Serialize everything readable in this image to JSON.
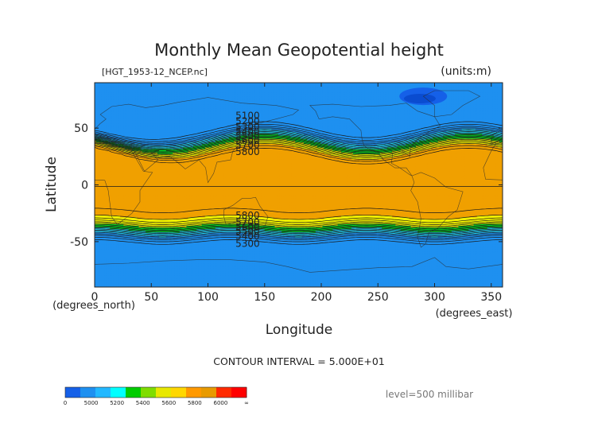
{
  "chart_data": {
    "type": "heatmap",
    "title": "Monthly Mean Geopotential height",
    "file_label": "[HGT_1953-12_NCEP.nc]",
    "units_label": "(units:m)",
    "xlabel": "Longitude",
    "ylabel": "Latitude",
    "x_unit_label": "(degrees_east)",
    "y_unit_label": "(degrees_north)",
    "xlim": [
      0,
      360
    ],
    "ylim": [
      -90,
      90
    ],
    "x_ticks": [
      0,
      50,
      100,
      150,
      200,
      250,
      300,
      350
    ],
    "y_ticks": [
      50,
      0,
      -50
    ],
    "contour_interval_text": "CONTOUR INTERVAL = 5.000E+01",
    "level_text": "level=500 millibar",
    "contour_interval": 50,
    "colorbar": {
      "ticks": [
        "0",
        "5000",
        "5200",
        "5400",
        "5600",
        "5800",
        "6000",
        "∞"
      ],
      "colors": [
        "#1560e8",
        "#1e90f0",
        "#22b8ff",
        "#00ffff",
        "#00cc00",
        "#7fdd00",
        "#e8e800",
        "#ffd700",
        "#ff9900",
        "#e89a00",
        "#ff2a00",
        "#ff0000"
      ]
    },
    "bands": [
      {
        "range": [
          4950,
          5150
        ],
        "color": "#1e90f0"
      },
      {
        "range": [
          5150,
          5350
        ],
        "color": "#22d7ff"
      },
      {
        "range": [
          5350,
          5550
        ],
        "color": "#00dd22"
      },
      {
        "range": [
          5550,
          5750
        ],
        "color": "#f0f000"
      },
      {
        "range": [
          5750,
          5900
        ],
        "color": "#f0a000"
      }
    ],
    "contour_labels": [
      {
        "text": "5100",
        "lon": 135,
        "lat": 61
      },
      {
        "text": "5200",
        "lon": 135,
        "lat": 56
      },
      {
        "text": "5300",
        "lon": 135,
        "lat": 51
      },
      {
        "text": "5400",
        "lon": 135,
        "lat": 47
      },
      {
        "text": "5500",
        "lon": 135,
        "lat": 43
      },
      {
        "text": "5600",
        "lon": 135,
        "lat": 39
      },
      {
        "text": "5700",
        "lon": 135,
        "lat": 35
      },
      {
        "text": "5800",
        "lon": 135,
        "lat": 29
      },
      {
        "text": "5800",
        "lon": 135,
        "lat": -27
      },
      {
        "text": "5700",
        "lon": 135,
        "lat": -33
      },
      {
        "text": "5600",
        "lon": 135,
        "lat": -37
      },
      {
        "text": "5500",
        "lon": 135,
        "lat": -41
      },
      {
        "text": "5400",
        "lon": 135,
        "lat": -45
      },
      {
        "text": "5300",
        "lon": 135,
        "lat": -52
      }
    ]
  }
}
